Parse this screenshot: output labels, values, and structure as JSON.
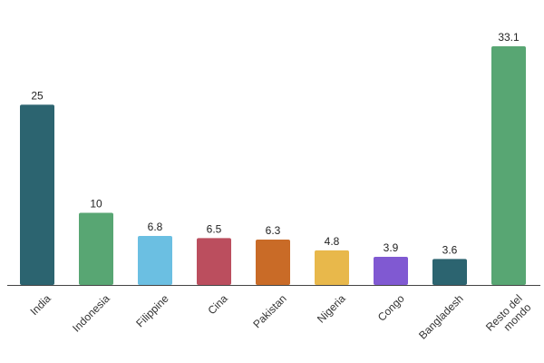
{
  "chart_data": {
    "type": "bar",
    "title": "",
    "xlabel": "",
    "ylabel": "",
    "categories": [
      "India",
      "Indonesia",
      "Filippine",
      "Cina",
      "Pakistan",
      "Nigeria",
      "Congo",
      "Bangladesh",
      "Resto del mondo"
    ],
    "tick_labels": [
      [
        "India"
      ],
      [
        "Indonesia"
      ],
      [
        "Filippine"
      ],
      [
        "Cina"
      ],
      [
        "Pakistan"
      ],
      [
        "Nigeria"
      ],
      [
        "Congo"
      ],
      [
        "Bangladesh"
      ],
      [
        "Resto del",
        "mondo"
      ]
    ],
    "values": [
      25,
      10,
      6.8,
      6.5,
      6.3,
      4.8,
      3.9,
      3.6,
      33.1
    ],
    "value_labels": [
      "25",
      "10",
      "6.8",
      "6.5",
      "6.3",
      "4.8",
      "3.9",
      "3.6",
      "33.1"
    ],
    "colors": [
      "#2c6470",
      "#58a673",
      "#6bbfe2",
      "#bb4e5e",
      "#c96b27",
      "#e8b84b",
      "#8059d2",
      "#2c6470",
      "#58a673"
    ],
    "ylim": [
      0,
      33.1
    ],
    "grid": false,
    "legend": "none"
  }
}
